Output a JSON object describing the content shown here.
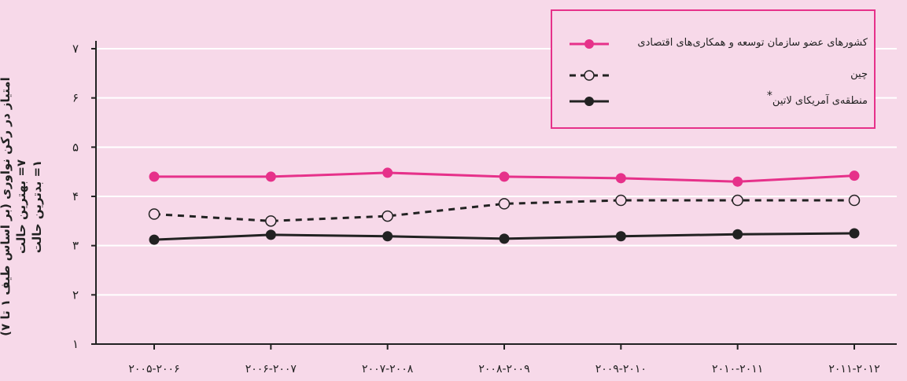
{
  "chart_data": {
    "type": "line",
    "ylabel_lines": [
      "امتیاز در رکن نوآوری (بر اساس طیف ۱ تا ۷)",
      "۷= بهترین حالت",
      "۱= بدترین حالت"
    ],
    "ylim": [
      1,
      7
    ],
    "yticks": [
      "۱",
      "۲",
      "۳",
      "۴",
      "۵",
      "۶",
      "۷"
    ],
    "categories": [
      "۲۰۰۵-۲۰۰۶",
      "۲۰۰۶-۲۰۰۷",
      "۲۰۰۷-۲۰۰۸",
      "۲۰۰۸-۲۰۰۹",
      "۲۰۰۹-۲۰۱۰",
      "۲۰۱۰-۲۰۱۱",
      "۲۰۱۱-۲۰۱۲"
    ],
    "grid": true,
    "legend_position": "top-right",
    "series": [
      {
        "name": "کشورهای عضو سازمان توسعه و همکاری‌های اقتصادی",
        "values": [
          4.4,
          4.4,
          4.48,
          4.4,
          4.37,
          4.3,
          4.42
        ],
        "color": "#e6318a",
        "style": "solid-filled"
      },
      {
        "name": "چین",
        "values": [
          3.64,
          3.5,
          3.6,
          3.85,
          3.92,
          3.92,
          3.92
        ],
        "color": "#222222",
        "style": "dashed-hollow"
      },
      {
        "name": "منطقه‌ی آمریکای لاتین",
        "values": [
          3.12,
          3.22,
          3.19,
          3.14,
          3.19,
          3.23,
          3.25
        ],
        "color": "#222222",
        "style": "solid-filled",
        "marker_note": "*"
      }
    ]
  }
}
